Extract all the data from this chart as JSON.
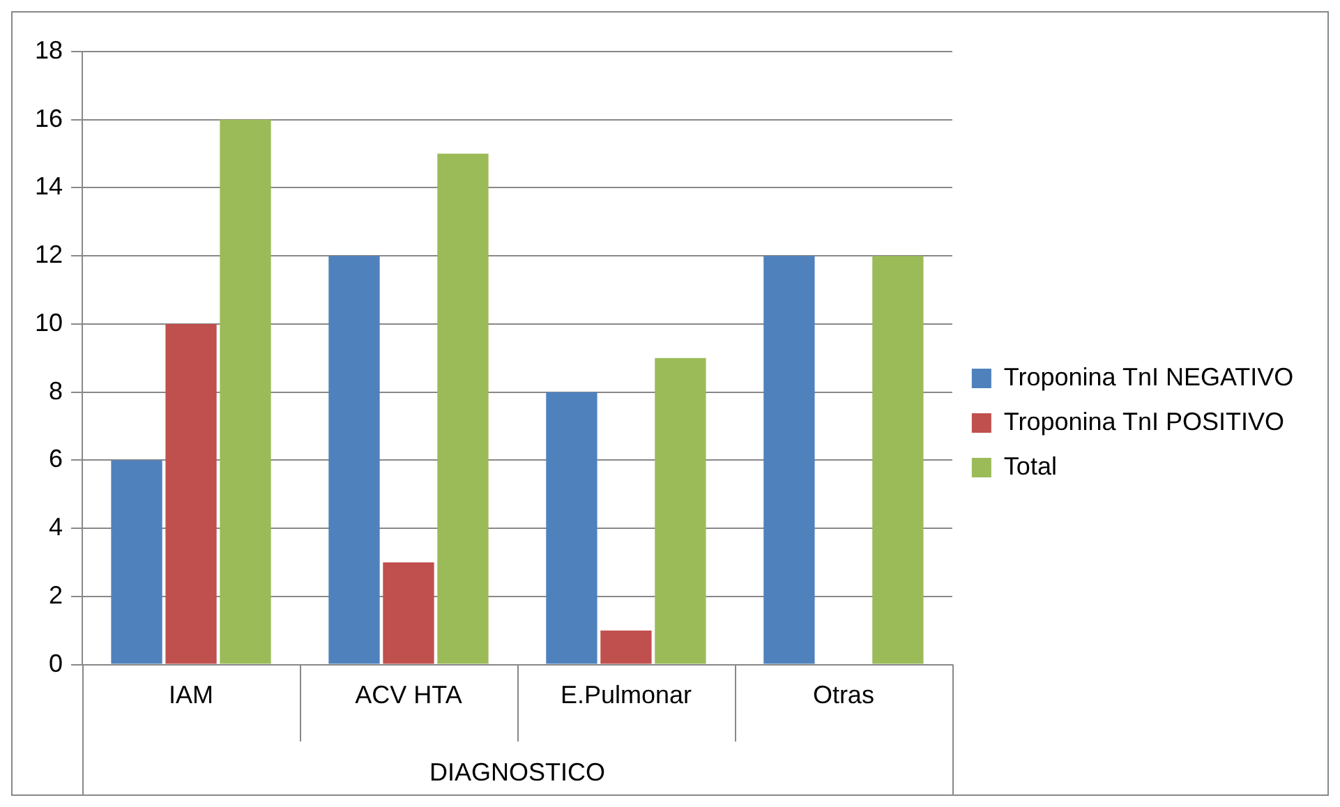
{
  "chart_data": {
    "type": "bar",
    "xlabel": "DIAGNOSTICO",
    "categories": [
      "IAM",
      "ACV HTA",
      "E.Pulmonar",
      "Otras"
    ],
    "series": [
      {
        "name": "Troponina TnI NEGATIVO",
        "color": "#4f81bd",
        "values": [
          6,
          12,
          8,
          12
        ]
      },
      {
        "name": "Troponina TnI POSITIVO",
        "color": "#c0504d",
        "values": [
          10,
          3,
          1,
          0
        ]
      },
      {
        "name": "Total",
        "color": "#9bbb59",
        "values": [
          16,
          15,
          9,
          12
        ]
      }
    ],
    "ylim": [
      0,
      18
    ],
    "yticks": [
      0,
      2,
      4,
      6,
      8,
      10,
      12,
      14,
      16,
      18
    ],
    "grid": "y",
    "legend": "right"
  }
}
